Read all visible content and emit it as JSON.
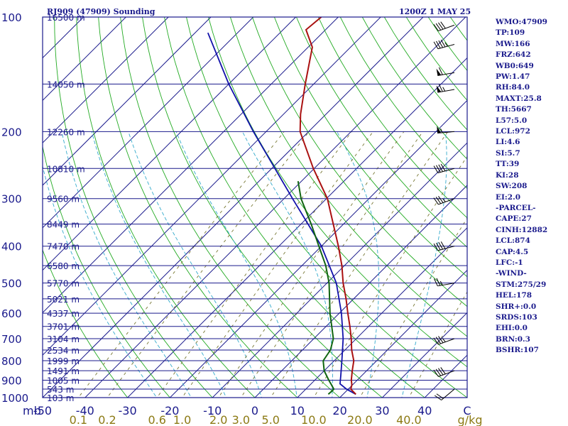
{
  "header": {
    "station": "RJ909 (47909) Sounding",
    "time": "1200Z  1 MAY 25"
  },
  "indices": [
    "WMO:47909",
    "TP:109",
    "MW:166",
    "FRZ:642",
    "WB0:649",
    "PW:1.47",
    "RH:84.0",
    "MAXT:25.8",
    "TH:5667",
    "L57:5.0",
    "LCL:972",
    "LI:4.6",
    "SI:5.7",
    "TT:39",
    "KI:28",
    "SW:208",
    "EI:2.0",
    "-PARCEL-",
    "CAPE:27",
    "CINH:12882",
    "LCL:874",
    "CAP:4.5",
    "LFC:-1",
    "-WIND-",
    "STM:275/29",
    "HEL:178",
    "SHR+:0.0",
    "SRDS:103",
    "EHI:0.0",
    "BRN:0.3",
    "BSHR:107"
  ],
  "chart_data": {
    "type": "skew-t",
    "pressure_ticks": [
      100,
      200,
      300,
      400,
      500,
      600,
      700,
      800,
      900,
      1000
    ],
    "pressure_unit": "mb",
    "temperature_ticks": [
      -50,
      -40,
      -30,
      -20,
      -10,
      0,
      10,
      20,
      30,
      40
    ],
    "temperature_unit": "C",
    "temp_range": [
      -50,
      50
    ],
    "pressure_range": [
      100,
      1000
    ],
    "mixing_ratio_ticks": [
      "0.1",
      "0.2",
      "0.6",
      "1.0",
      "2.0",
      "3.0",
      "5.0",
      "10.0",
      "20.0",
      "40.0"
    ],
    "mixing_ratio_unit": "g/kg",
    "height_levels": [
      {
        "p": 100,
        "label": "16500 m"
      },
      {
        "p": 150,
        "label": "14050 m"
      },
      {
        "p": 200,
        "label": "12260 m"
      },
      {
        "p": 250,
        "label": "10810 m"
      },
      {
        "p": 300,
        "label": "9560 m"
      },
      {
        "p": 350,
        "label": "8449 m"
      },
      {
        "p": 400,
        "label": "7470 m"
      },
      {
        "p": 450,
        "label": "6580 m"
      },
      {
        "p": 500,
        "label": "5770 m"
      },
      {
        "p": 550,
        "label": "5021 m"
      },
      {
        "p": 600,
        "label": "4337 m"
      },
      {
        "p": 650,
        "label": "3701 m"
      },
      {
        "p": 700,
        "label": "3104 m"
      },
      {
        "p": 750,
        "label": "2534 m"
      },
      {
        "p": 800,
        "label": "1999 m"
      },
      {
        "p": 850,
        "label": "1491 m"
      },
      {
        "p": 900,
        "label": "1005 m"
      },
      {
        "p": 950,
        "label": "543 m"
      },
      {
        "p": 1000,
        "label": "103 m"
      }
    ],
    "temperature": [
      {
        "p": 980,
        "t": 23.0
      },
      {
        "p": 950,
        "t": 20.6
      },
      {
        "p": 925,
        "t": 19.8
      },
      {
        "p": 900,
        "t": 18.6
      },
      {
        "p": 850,
        "t": 16.6
      },
      {
        "p": 800,
        "t": 14.6
      },
      {
        "p": 750,
        "t": 11.6
      },
      {
        "p": 700,
        "t": 8.8
      },
      {
        "p": 650,
        "t": 5.6
      },
      {
        "p": 600,
        "t": 2.0
      },
      {
        "p": 550,
        "t": -1.8
      },
      {
        "p": 500,
        "t": -6.2
      },
      {
        "p": 450,
        "t": -10.6
      },
      {
        "p": 400,
        "t": -16.0
      },
      {
        "p": 350,
        "t": -22.4
      },
      {
        "p": 300,
        "t": -29.8
      },
      {
        "p": 250,
        "t": -40.2
      },
      {
        "p": 200,
        "t": -52.0
      },
      {
        "p": 180,
        "t": -56.0
      },
      {
        "p": 150,
        "t": -62.0
      },
      {
        "p": 120,
        "t": -69.0
      },
      {
        "p": 108,
        "t": -74.6
      },
      {
        "p": 100,
        "t": -74.0
      }
    ],
    "dewpoint": [
      {
        "p": 980,
        "t": 16.5
      },
      {
        "p": 960,
        "t": 16.6
      },
      {
        "p": 950,
        "t": 16.6
      },
      {
        "p": 925,
        "t": 15.0
      },
      {
        "p": 900,
        "t": 13.3
      },
      {
        "p": 850,
        "t": 10.0
      },
      {
        "p": 800,
        "t": 7.4
      },
      {
        "p": 750,
        "t": 6.6
      },
      {
        "p": 700,
        "t": 4.6
      },
      {
        "p": 600,
        "t": -2.2
      },
      {
        "p": 500,
        "t": -9.5
      },
      {
        "p": 450,
        "t": -14.4
      },
      {
        "p": 400,
        "t": -20.6
      },
      {
        "p": 350,
        "t": -27.6
      },
      {
        "p": 300,
        "t": -36.0
      },
      {
        "p": 270,
        "t": -40.8
      }
    ],
    "parcel": [
      {
        "p": 980,
        "t": 23.0
      },
      {
        "p": 950,
        "t": 19.6
      },
      {
        "p": 920,
        "t": 16.8
      },
      {
        "p": 874,
        "t": 15.0
      },
      {
        "p": 800,
        "t": 11.8
      },
      {
        "p": 700,
        "t": 6.9
      },
      {
        "p": 600,
        "t": 0.5
      },
      {
        "p": 500,
        "t": -7.8
      },
      {
        "p": 400,
        "t": -20.0
      },
      {
        "p": 300,
        "t": -38.0
      },
      {
        "p": 200,
        "t": -63.0
      },
      {
        "p": 150,
        "t": -80.0
      },
      {
        "p": 110,
        "t": -97.0
      }
    ],
    "wind_barbs": [
      {
        "p": 105,
        "dir": 250,
        "spd": 40
      },
      {
        "p": 118,
        "dir": 255,
        "spd": 45
      },
      {
        "p": 140,
        "dir": 260,
        "spd": 60
      },
      {
        "p": 155,
        "dir": 260,
        "spd": 65
      },
      {
        "p": 200,
        "dir": 265,
        "spd": 55
      },
      {
        "p": 250,
        "dir": 255,
        "spd": 40
      },
      {
        "p": 300,
        "dir": 250,
        "spd": 35
      },
      {
        "p": 400,
        "dir": 255,
        "spd": 40
      },
      {
        "p": 500,
        "dir": 260,
        "spd": 25
      },
      {
        "p": 700,
        "dir": 250,
        "spd": 35
      },
      {
        "p": 850,
        "dir": 250,
        "spd": 40
      },
      {
        "p": 950,
        "dir": 230,
        "spd": 20
      }
    ],
    "colors": {
      "temperature": "#aa1111",
      "dewpoint": "#116611",
      "parcel": "#1111aa",
      "isobar": "#1a1a8c",
      "isotherm": "#1a1a8c",
      "dry_adiabat": "#22aa22",
      "moist_adiabat": "#33aacc",
      "mixing_ratio": "#777733",
      "barb": "#000000"
    }
  }
}
